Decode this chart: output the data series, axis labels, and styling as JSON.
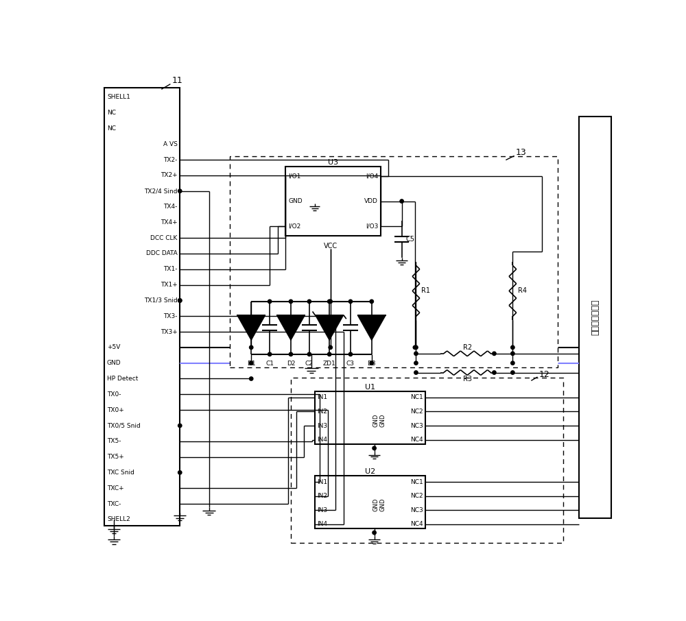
{
  "figsize": [
    10.0,
    9.06
  ],
  "dpi": 100,
  "connector_pins": [
    "SHELL1",
    "NC",
    "NC",
    "A VS",
    "TX2-",
    "TX2+",
    "TX2/4 Sind",
    "TX4-",
    "TX4+",
    "DCC CLK",
    "DDC DATA",
    "TX1-",
    "TX1+",
    "TX1/3 Snid",
    "TX3-",
    "TX3+",
    "+5V",
    "GND",
    "HP Detect",
    "TX0-",
    "TX0+",
    "TX0/5 Snid",
    "TX5-",
    "TX5+",
    "TXC Snid",
    "TXC+",
    "TXC-",
    "SHELL2"
  ],
  "right_label": "显示屏控制电路",
  "gnd_color": "#8080ff",
  "plus5v_color": "#000000",
  "line_color": "#000000"
}
